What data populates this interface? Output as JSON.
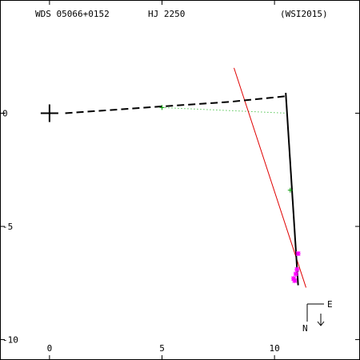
{
  "header": {
    "wds_id": "WDS 05066+0152",
    "discoverer": "HJ 2250",
    "reference": "(WSI2015)"
  },
  "orientation": {
    "east_label": "E",
    "north_label": "N"
  },
  "colors": {
    "axes": "#000000",
    "orbit_path": "#000000",
    "fit_line": "#e00000",
    "projection_line": "#00aa00",
    "observation_green": "#009900",
    "observation_magenta": "#ff00ff"
  },
  "chart_data": {
    "type": "scatter",
    "title": "",
    "xlabel": "",
    "ylabel": "",
    "xlim": [
      -2.2,
      13.8
    ],
    "ylim": [
      -10.9,
      5
    ],
    "x_ticks": [
      0,
      5,
      10
    ],
    "x_tick_labels": [
      "0",
      "5",
      "10"
    ],
    "y_ticks": [
      0,
      -5,
      -10
    ],
    "y_tick_labels": [
      "0",
      "-5",
      "-10"
    ],
    "primary": {
      "x": 0,
      "y": 0
    },
    "dashed_path": [
      {
        "x": 0.7,
        "y": 0.0
      },
      {
        "x": 5.0,
        "y": 0.3
      },
      {
        "x": 8.0,
        "y": 0.5
      },
      {
        "x": 10.5,
        "y": 0.75
      }
    ],
    "solid_path": [
      {
        "x": 10.5,
        "y": 0.9
      },
      {
        "x": 11.05,
        "y": -7.6
      }
    ],
    "fit_line": [
      {
        "x": 8.2,
        "y": 2.0
      },
      {
        "x": 11.4,
        "y": -7.7
      }
    ],
    "projection_lines": [
      {
        "x1": 5.0,
        "y1": 0.25,
        "x2": 10.6,
        "y2": 0.0
      }
    ],
    "observations_green": [
      {
        "x": 5.0,
        "y": 0.25
      },
      {
        "x": 10.7,
        "y": -3.4
      }
    ],
    "observations_magenta": [
      {
        "x": 11.05,
        "y": -6.2
      },
      {
        "x": 11.0,
        "y": -6.9
      },
      {
        "x": 10.95,
        "y": -7.1
      },
      {
        "x": 10.85,
        "y": -7.3
      },
      {
        "x": 10.9,
        "y": -7.4
      }
    ]
  }
}
